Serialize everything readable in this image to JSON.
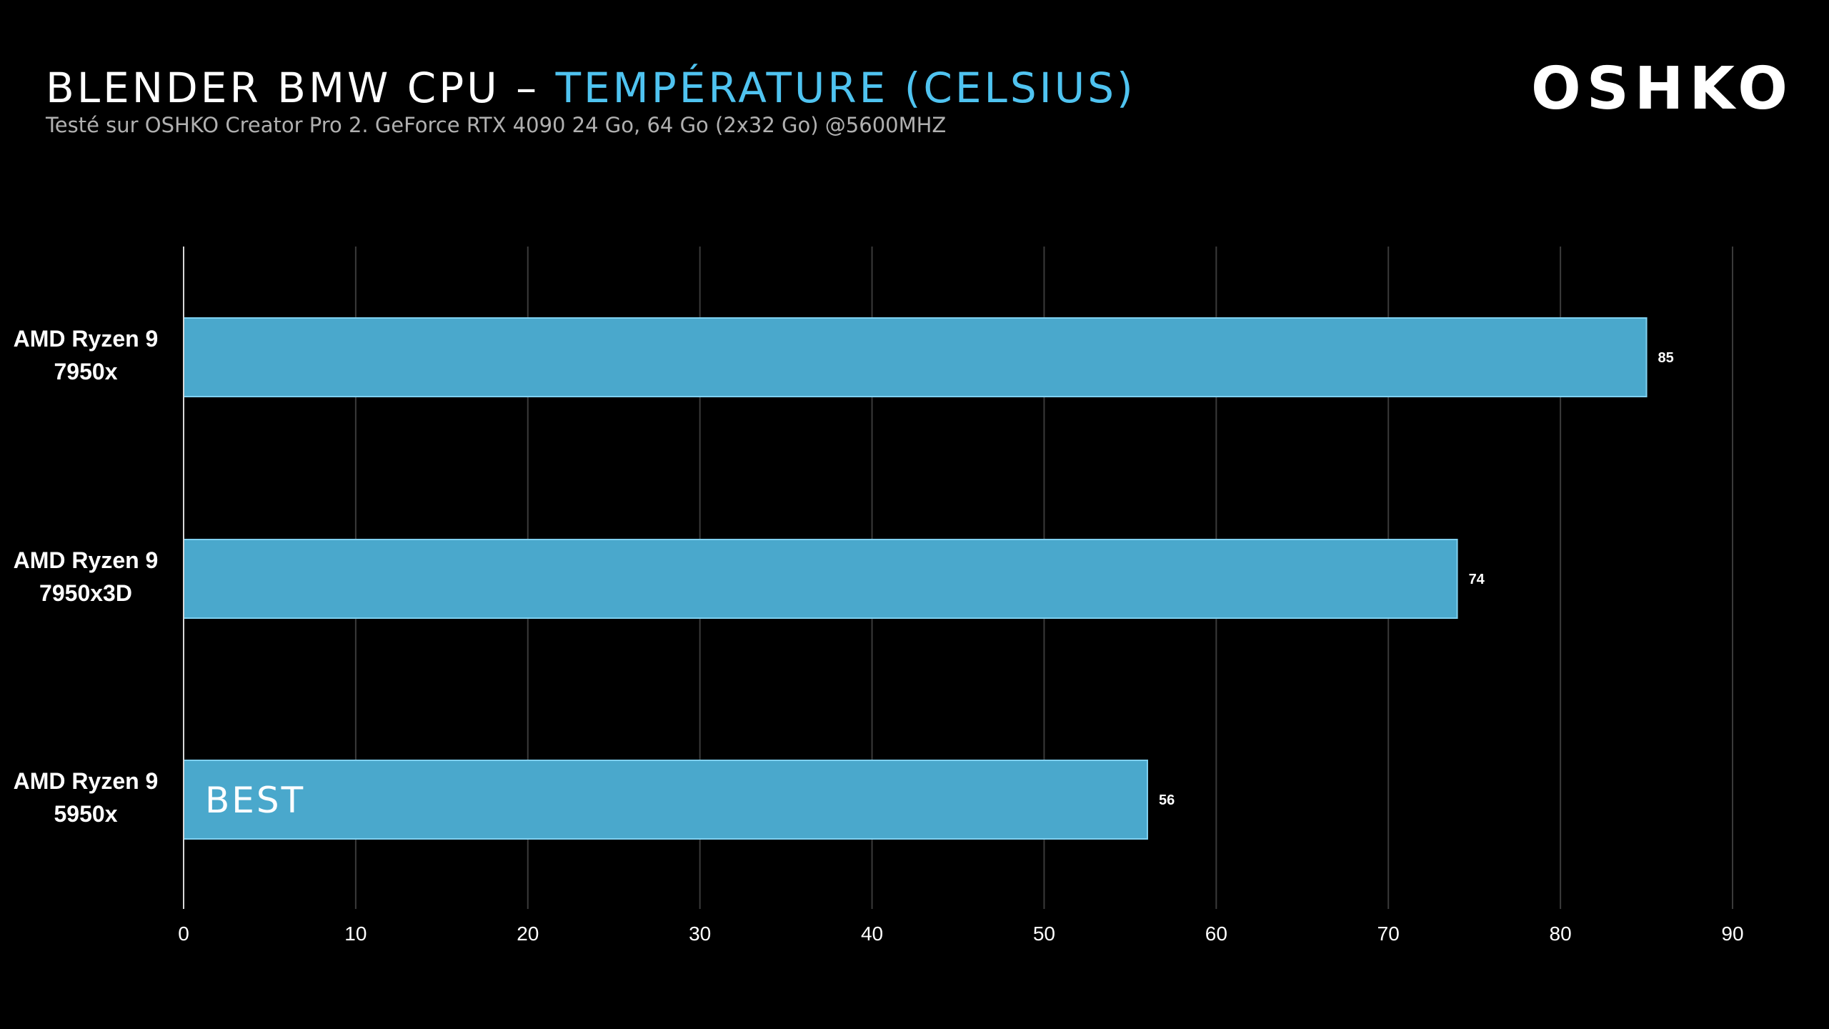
{
  "header": {
    "title_main": "BLENDER BMW CPU – ",
    "title_accent": "TEMPÉRATURE (CELSIUS)",
    "subtitle": "Testé sur OSHKO Creator Pro 2. GeForce RTX 4090 24 Go, 64 Go (2x32 Go) @5600MHZ",
    "logo": "OSHKO"
  },
  "colors": {
    "background": "#000000",
    "bar_fill": "#4aa8cc",
    "bar_stroke": "#7fd0f0",
    "accent": "#4fc3f0",
    "grid": "#3a3a3a"
  },
  "chart_data": {
    "type": "bar",
    "orientation": "horizontal",
    "categories": [
      [
        "AMD Ryzen 9",
        "7950x"
      ],
      [
        "AMD Ryzen 9",
        "7950x3D"
      ],
      [
        "AMD Ryzen 9",
        "5950x"
      ]
    ],
    "values": [
      85,
      74,
      56
    ],
    "data_labels": [
      "85",
      "74",
      "56"
    ],
    "annotations": [
      null,
      null,
      "BEST"
    ],
    "xlim": [
      0,
      90
    ],
    "xticks": [
      0,
      10,
      20,
      30,
      40,
      50,
      60,
      70,
      80,
      90
    ],
    "grid": true,
    "legend": "none"
  }
}
